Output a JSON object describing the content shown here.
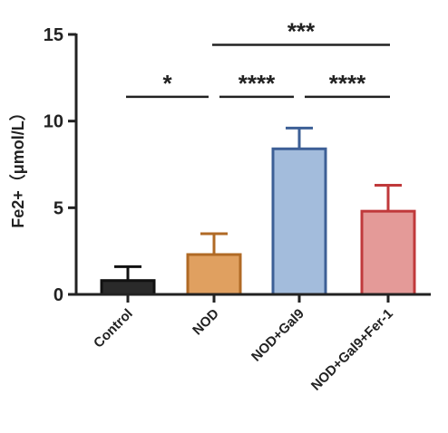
{
  "chart_data": {
    "type": "bar",
    "ylabel": "Fe2+（μmol/L）",
    "ylim": [
      0,
      15
    ],
    "yticks": [
      "0",
      "5",
      "10",
      "15"
    ],
    "categories": [
      "Control",
      "NOD",
      "NOD+Gal9",
      "NOD+Gal9+Fer-1"
    ],
    "values": [
      0.8,
      2.3,
      8.4,
      4.8
    ],
    "errors": [
      0.8,
      1.2,
      1.2,
      1.5
    ],
    "colors": [
      "#2a2a2a",
      "#e0a060",
      "#a3bcdc",
      "#e49a98"
    ],
    "edge_colors": [
      "#111111",
      "#b06a25",
      "#3d5f96",
      "#c0393b"
    ],
    "significance": [
      {
        "from": 0,
        "to": 1,
        "label": "*",
        "y": 11.4
      },
      {
        "from": 1,
        "to": 2,
        "label": "****",
        "y": 11.4
      },
      {
        "from": 2,
        "to": 3,
        "label": "****",
        "y": 11.4
      },
      {
        "from": 1,
        "to": 3,
        "label": "***",
        "y": 14.4
      }
    ]
  }
}
